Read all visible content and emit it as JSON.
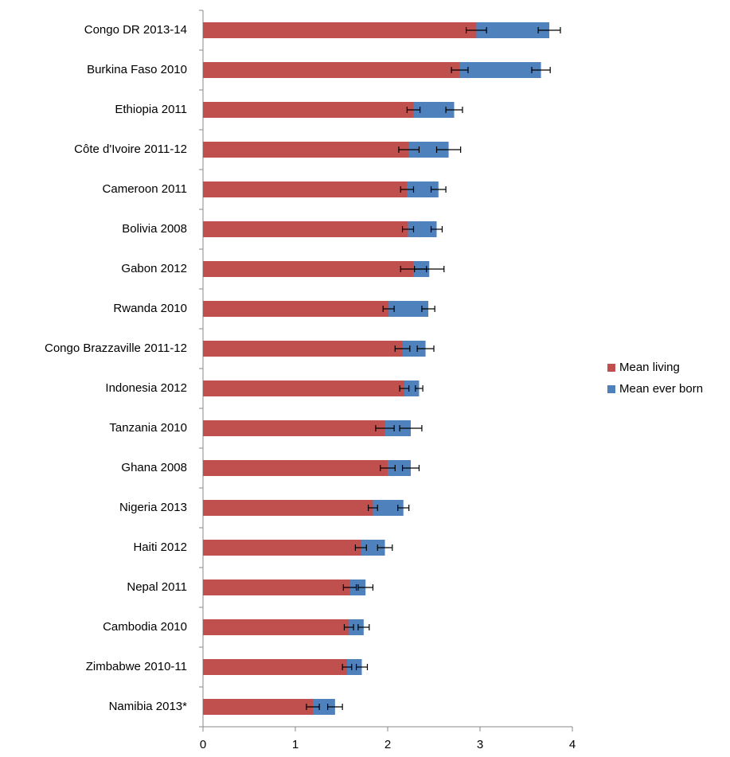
{
  "chart_data": {
    "type": "overlaid-bar",
    "categories": [
      "Congo DR 2013-14",
      "Burkina Faso 2010",
      "Ethiopia 2011",
      "Côte d'Ivoire 2011-12",
      "Cameroon 2011",
      "Bolivia 2008",
      "Gabon 2012",
      "Rwanda 2010",
      "Congo Brazzaville 2011-12",
      "Indonesia 2012",
      "Tanzania 2010",
      "Ghana 2008",
      "Nigeria 2013",
      "Haiti 2012",
      "Nepal 2011",
      "Cambodia 2010",
      "Zimbabwe 2010-11",
      "Namibia 2013*"
    ],
    "series": [
      {
        "name": "Mean ever born",
        "color": "#4f81bd",
        "values": [
          3.75,
          3.66,
          2.72,
          2.66,
          2.55,
          2.53,
          2.45,
          2.44,
          2.41,
          2.34,
          2.25,
          2.25,
          2.17,
          1.97,
          1.76,
          1.74,
          1.72,
          1.43
        ],
        "errors": [
          0.12,
          0.1,
          0.09,
          0.13,
          0.08,
          0.06,
          0.16,
          0.07,
          0.09,
          0.04,
          0.12,
          0.09,
          0.06,
          0.08,
          0.08,
          0.06,
          0.06,
          0.08
        ]
      },
      {
        "name": "Mean living",
        "color": "#c0504d",
        "values": [
          2.96,
          2.78,
          2.28,
          2.23,
          2.21,
          2.22,
          2.28,
          2.01,
          2.16,
          2.18,
          1.97,
          2.0,
          1.84,
          1.71,
          1.59,
          1.58,
          1.56,
          1.19
        ],
        "errors": [
          0.11,
          0.09,
          0.07,
          0.11,
          0.07,
          0.06,
          0.14,
          0.06,
          0.08,
          0.05,
          0.1,
          0.08,
          0.05,
          0.06,
          0.07,
          0.05,
          0.05,
          0.07
        ]
      }
    ],
    "xlim": [
      0,
      4
    ],
    "xticks": [
      0,
      1,
      2,
      3,
      4
    ],
    "legend": "right"
  }
}
